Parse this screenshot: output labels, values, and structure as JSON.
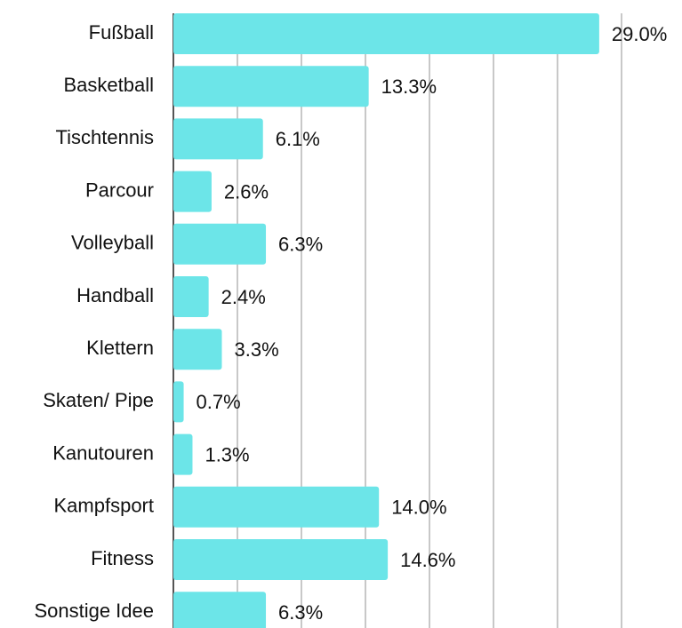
{
  "chart_data": {
    "type": "bar",
    "orientation": "horizontal",
    "categories": [
      "Fußball",
      "Basketball",
      "Tischtennis",
      "Parcour",
      "Volleyball",
      "Handball",
      "Klettern",
      "Skaten/ Pipe",
      "Kanutouren",
      "Kampfsport",
      "Fitness",
      "Sonstige Idee"
    ],
    "values": [
      29.0,
      13.3,
      6.1,
      2.6,
      6.3,
      2.4,
      3.3,
      0.7,
      1.3,
      14.0,
      14.6,
      6.3
    ],
    "value_labels": [
      "29.0%",
      "13.3%",
      "6.1%",
      "2.6%",
      "6.3%",
      "2.4%",
      "3.3%",
      "0.7%",
      "1.3%",
      "14.0%",
      "14.6%",
      "6.3%"
    ],
    "color": "#6ce5e8",
    "xlim": [
      0,
      30.52
    ],
    "xticks": [
      0,
      4.36,
      8.72,
      13.08,
      17.44,
      21.8,
      26.16,
      30.52
    ],
    "grid": true
  }
}
